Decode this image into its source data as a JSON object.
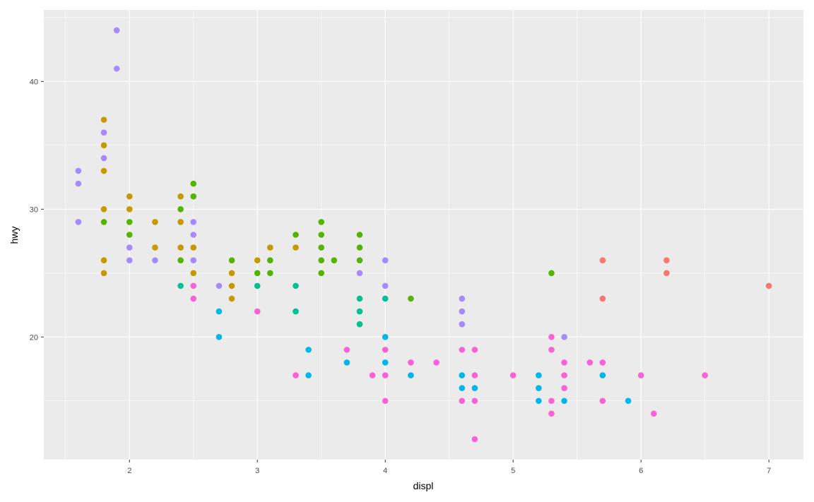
{
  "chart_data": {
    "type": "scatter",
    "x_label": "displ",
    "y_label": "hwy",
    "xlim": [
      1.33,
      7.27
    ],
    "ylim": [
      10.4,
      45.6
    ],
    "xticks": [
      2,
      3,
      4,
      5,
      6,
      7
    ],
    "yticks": [
      20,
      30,
      40
    ],
    "minor_xticks": [
      1.5,
      2.5,
      3.5,
      4.5,
      5.5,
      6.5
    ],
    "minor_yticks": [
      15,
      25,
      35,
      45
    ],
    "grid": true,
    "panel_color": "#ebebeb",
    "series": [
      {
        "color": "#F8766D",
        "x": [
          5.7,
          5.7,
          6.2,
          6.2,
          7.0
        ],
        "y": [
          26,
          23,
          26,
          25,
          24
        ]
      },
      {
        "color": "#C49A00",
        "x": [
          1.8,
          1.8,
          1.8,
          1.8,
          1.8,
          1.8,
          2.0,
          2.0,
          2.2,
          2.2,
          2.4,
          2.4,
          2.4,
          2.5,
          2.5,
          2.8,
          2.8,
          2.8,
          3.0,
          3.1,
          3.3
        ],
        "y": [
          37,
          35,
          33,
          30,
          26,
          25,
          31,
          30,
          29,
          27,
          31,
          29,
          27,
          27,
          25,
          25,
          24,
          23,
          26,
          27,
          27
        ]
      },
      {
        "color": "#53B400",
        "x": [
          1.8,
          2.0,
          2.0,
          2.4,
          2.4,
          2.5,
          2.5,
          2.8,
          3.0,
          3.1,
          3.1,
          3.3,
          3.5,
          3.5,
          3.5,
          3.5,
          3.5,
          3.6,
          3.8,
          3.8,
          3.8,
          4.2,
          5.3
        ],
        "y": [
          29,
          29,
          28,
          30,
          26,
          32,
          31,
          26,
          25,
          26,
          25,
          28,
          29,
          28,
          27,
          26,
          25,
          26,
          28,
          27,
          26,
          23,
          25
        ]
      },
      {
        "color": "#00C094",
        "x": [
          2.4,
          3.0,
          3.3,
          3.3,
          3.8,
          3.8,
          3.8,
          4.0
        ],
        "y": [
          24,
          24,
          24,
          22,
          23,
          22,
          21,
          23
        ]
      },
      {
        "color": "#00B6EB",
        "x": [
          2.7,
          2.7,
          3.4,
          3.4,
          3.7,
          4.0,
          4.0,
          4.2,
          4.6,
          4.6,
          4.7,
          5.2,
          5.2,
          5.2,
          5.4,
          5.7,
          5.9
        ],
        "y": [
          22,
          20,
          19,
          17,
          18,
          20,
          18,
          17,
          17,
          16,
          16,
          17,
          16,
          15,
          15,
          17,
          15
        ]
      },
      {
        "color": "#A58AFF",
        "x": [
          1.6,
          1.6,
          1.6,
          1.8,
          1.8,
          1.9,
          1.9,
          2.0,
          2.0,
          2.2,
          2.5,
          2.5,
          2.5,
          2.7,
          3.8,
          4.0,
          4.0,
          4.6,
          4.6,
          4.6,
          5.4
        ],
        "y": [
          33,
          32,
          29,
          36,
          34,
          44,
          41,
          27,
          26,
          26,
          29,
          28,
          26,
          24,
          25,
          26,
          24,
          23,
          22,
          21,
          20
        ]
      },
      {
        "color": "#FB61D7",
        "x": [
          2.5,
          2.5,
          3.0,
          3.3,
          3.7,
          3.9,
          4.0,
          4.0,
          4.0,
          4.2,
          4.4,
          4.6,
          4.6,
          4.7,
          4.7,
          4.7,
          4.7,
          5.0,
          5.3,
          5.3,
          5.3,
          5.3,
          5.4,
          5.4,
          5.4,
          5.6,
          5.7,
          5.7,
          6.0,
          6.1,
          6.5
        ],
        "y": [
          24,
          23,
          22,
          17,
          19,
          17,
          19,
          17,
          15,
          18,
          18,
          19,
          15,
          19,
          17,
          15,
          12,
          17,
          20,
          19,
          15,
          14,
          18,
          17,
          16,
          18,
          18,
          15,
          17,
          14,
          17
        ]
      }
    ]
  }
}
